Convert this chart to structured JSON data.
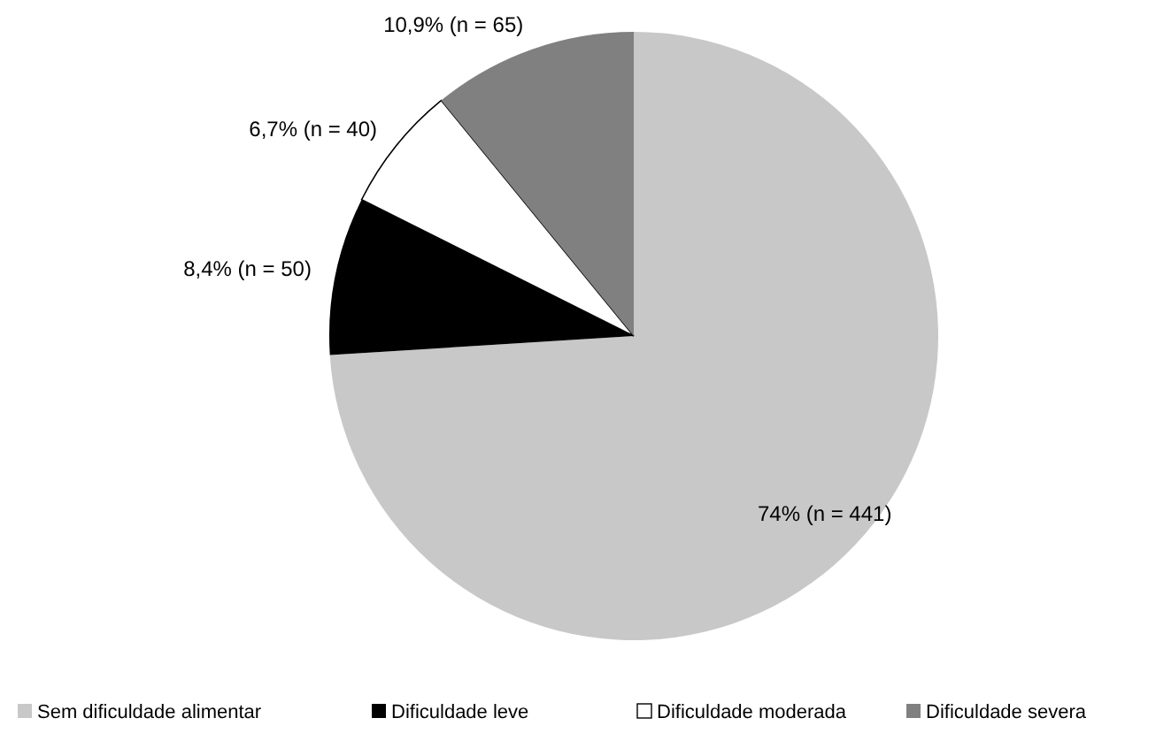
{
  "chart_data": {
    "type": "pie",
    "categories": [
      "Sem dificuldade alimentar",
      "Dificuldade leve",
      "Dificuldade moderada",
      "Dificuldade severa"
    ],
    "values": [
      74,
      8.4,
      6.7,
      10.9
    ],
    "colors": [
      "#c8c8c8",
      "#000000",
      "#ffffff",
      "#808080"
    ],
    "value_labels": [
      "74% (n = 441)",
      "8,4% (n = 50)",
      "6,7% (n = 40)",
      "10,9% (n = 65)"
    ],
    "legend": "bottom"
  }
}
